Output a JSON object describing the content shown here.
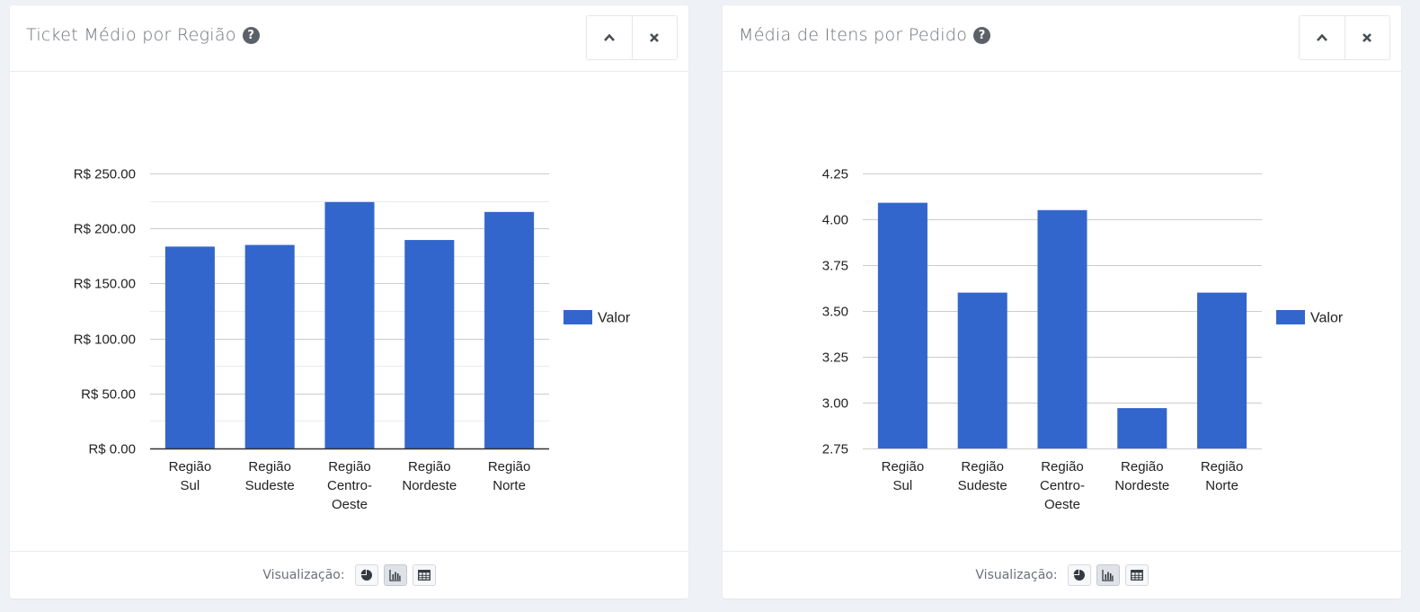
{
  "panels": [
    {
      "title": "Ticket Médio por Região",
      "footer": {
        "label": "Visualização:"
      },
      "icons": [
        "help-icon",
        "chevron-up-icon",
        "close-icon",
        "pie-chart-icon",
        "bar-chart-icon",
        "table-icon"
      ]
    },
    {
      "title": "Média de Itens por Pedido",
      "footer": {
        "label": "Visualização:"
      },
      "icons": [
        "help-icon",
        "chevron-up-icon",
        "close-icon",
        "pie-chart-icon",
        "bar-chart-icon",
        "table-icon"
      ]
    }
  ],
  "colors": {
    "bar": "#3366cc",
    "grid": "#cccccc",
    "minor_grid": "#ebebeb",
    "axis": "#333333",
    "text": "#222222"
  },
  "chart_data": [
    {
      "type": "bar",
      "categories": [
        [
          "Região",
          "Sul"
        ],
        [
          "Região",
          "Sudeste"
        ],
        [
          "Região",
          "Centro-",
          "Oeste"
        ],
        [
          "Região",
          "Nordeste"
        ],
        [
          "Região",
          "Norte"
        ]
      ],
      "series": [
        {
          "name": "Valor",
          "values": [
            183.5,
            185.0,
            224.0,
            189.5,
            215.0
          ]
        }
      ],
      "ylim": [
        0,
        250
      ],
      "yticks": [
        0,
        50,
        100,
        150,
        200,
        250
      ],
      "ytick_labels": [
        "R$ 0.00",
        "R$ 50.00",
        "R$ 100.00",
        "R$ 150.00",
        "R$ 200.00",
        "R$ 250.00"
      ],
      "grid": true,
      "minor_grid": true,
      "legend": "right"
    },
    {
      "type": "bar",
      "categories": [
        [
          "Região",
          "Sul"
        ],
        [
          "Região",
          "Sudeste"
        ],
        [
          "Região",
          "Centro-",
          "Oeste"
        ],
        [
          "Região",
          "Nordeste"
        ],
        [
          "Região",
          "Norte"
        ]
      ],
      "series": [
        {
          "name": "Valor",
          "values": [
            4.09,
            3.6,
            4.05,
            2.97,
            3.6
          ]
        }
      ],
      "ylim": [
        2.75,
        4.25
      ],
      "yticks": [
        2.75,
        3.0,
        3.25,
        3.5,
        3.75,
        4.0,
        4.25
      ],
      "ytick_labels": [
        "2.75",
        "3.00",
        "3.25",
        "3.50",
        "3.75",
        "4.00",
        "4.25"
      ],
      "grid": true,
      "minor_grid": false,
      "legend": "right"
    }
  ]
}
